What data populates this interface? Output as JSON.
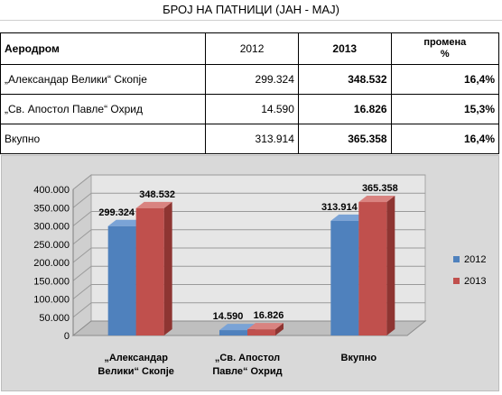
{
  "title": "БРОЈ НА ПАТНИЦИ (ЈАН - МАЈ)",
  "table": {
    "headers": [
      "Аеродром",
      "2012",
      "2013",
      "промена\n%"
    ],
    "header_pct_line1": "промена",
    "header_pct_line2": "%",
    "rows": [
      [
        "„Александар Велики“ Скопје",
        "299.324",
        "348.532",
        "16,4%"
      ],
      [
        "„Св. Апостол Павле“ Охрид",
        "14.590",
        "16.826",
        "15,3%"
      ],
      [
        "Вкупно",
        "313.914",
        "365.358",
        "16,4%"
      ]
    ]
  },
  "chart_data": {
    "type": "bar",
    "categories": [
      [
        "„Александар",
        "Велики“ Скопје"
      ],
      [
        "„Св. Апостол",
        "Павле“ Охрид"
      ],
      [
        "Вкупно"
      ]
    ],
    "series": [
      {
        "name": "2012",
        "values": [
          299324,
          14590,
          313914
        ],
        "labels": [
          "299.324",
          "14.590",
          "313.914"
        ],
        "color": "#4f81bd",
        "side": "#3a6190",
        "top": "#7aa3d6"
      },
      {
        "name": "2013",
        "values": [
          348532,
          16826,
          365358
        ],
        "labels": [
          "348.532",
          "16.826",
          "365.358"
        ],
        "color": "#c0504d",
        "side": "#8e3532",
        "top": "#d98380"
      }
    ],
    "yticks": [
      "0",
      "50.000",
      "100.000",
      "150.000",
      "200.000",
      "250.000",
      "300.000",
      "350.000",
      "400.000"
    ],
    "ylim": [
      0,
      400000
    ],
    "grid": true,
    "legend": "right"
  }
}
